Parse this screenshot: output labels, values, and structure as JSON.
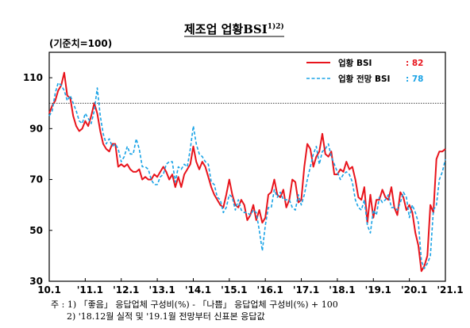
{
  "chart_data": {
    "type": "line",
    "title": "제조업 업황BSI",
    "title_superscript": "1)2)",
    "ylabel": "(기준치=100)",
    "ylim": [
      30,
      120
    ],
    "yticks": [
      30,
      50,
      70,
      90,
      110
    ],
    "reference_line": 100,
    "x_tick_labels": [
      "10.1",
      "'11.1",
      "'12.1",
      "'13.1",
      "'14.1",
      "'15.1",
      "'16.1",
      "'17.1",
      "'18.1",
      "'19.1",
      "'20.1",
      "'21.1"
    ],
    "legend": [
      {
        "name": "업황 BSI",
        "value_label": ": 82",
        "color": "#e8141c",
        "style": "solid"
      },
      {
        "name": "업황 전망 BSI",
        "value_label": ": 78",
        "color": "#1aa3e6",
        "style": "dashed"
      }
    ],
    "series": [
      {
        "name": "업황 BSI",
        "color": "#e8141c",
        "values": [
          96,
          99,
          101,
          105,
          107,
          112,
          103,
          102,
          95,
          91,
          89,
          90,
          93,
          91,
          95,
          100,
          96,
          89,
          84,
          82,
          81,
          84,
          84,
          75,
          76,
          75,
          76,
          74,
          73,
          73,
          74,
          70,
          71,
          70,
          70,
          72,
          71,
          73,
          75,
          73,
          70,
          72,
          67,
          71,
          67,
          72,
          74,
          76,
          83,
          77,
          74,
          77,
          75,
          71,
          67,
          64,
          62,
          60,
          59,
          64,
          70,
          64,
          60,
          59,
          62,
          60,
          54,
          56,
          60,
          54,
          58,
          53,
          55,
          64,
          65,
          70,
          64,
          63,
          66,
          59,
          62,
          70,
          69,
          61,
          62,
          75,
          84,
          82,
          75,
          79,
          81,
          88,
          80,
          79,
          81,
          72,
          72,
          74,
          73,
          77,
          74,
          75,
          70,
          63,
          62,
          67,
          53,
          64,
          55,
          62,
          62,
          66,
          63,
          62,
          67,
          59,
          56,
          65,
          63,
          58,
          60,
          57,
          49,
          44,
          34,
          36,
          40,
          60,
          57,
          78,
          81,
          81,
          82
        ]
      },
      {
        "name": "업황 전망 BSI",
        "color": "#1aa3e6",
        "values": [
          95,
          97,
          104,
          108,
          107,
          105,
          101,
          103,
          100,
          97,
          93,
          92,
          96,
          94,
          92,
          97,
          106,
          95,
          88,
          84,
          86,
          83,
          84,
          82,
          77,
          79,
          83,
          80,
          80,
          86,
          82,
          75,
          75,
          74,
          70,
          68,
          68,
          71,
          72,
          76,
          77,
          77,
          69,
          75,
          74,
          76,
          75,
          82,
          91,
          84,
          80,
          79,
          77,
          76,
          69,
          68,
          63,
          62,
          57,
          59,
          64,
          63,
          58,
          62,
          58,
          57,
          57,
          56,
          58,
          57,
          50,
          42,
          52,
          59,
          59,
          66,
          63,
          65,
          62,
          62,
          62,
          59,
          58,
          64,
          60,
          64,
          70,
          75,
          80,
          83,
          76,
          81,
          82,
          84,
          79,
          76,
          73,
          70,
          72,
          73,
          72,
          69,
          62,
          59,
          58,
          62,
          52,
          49,
          58,
          56,
          63,
          61,
          62,
          64,
          59,
          59,
          58,
          61,
          65,
          63,
          55,
          60,
          57,
          53,
          38,
          35,
          37,
          40,
          58,
          60,
          70,
          73,
          78
        ]
      }
    ]
  },
  "notes": {
    "line1": "주 : 1) 「좋음」 응답업체 구성비(%) - 「나쁨」 응답업체 구성비(%) + 100",
    "line2": "2) '18.12월 실적 및 '19.1월 전망부터 신표본 응답값"
  }
}
